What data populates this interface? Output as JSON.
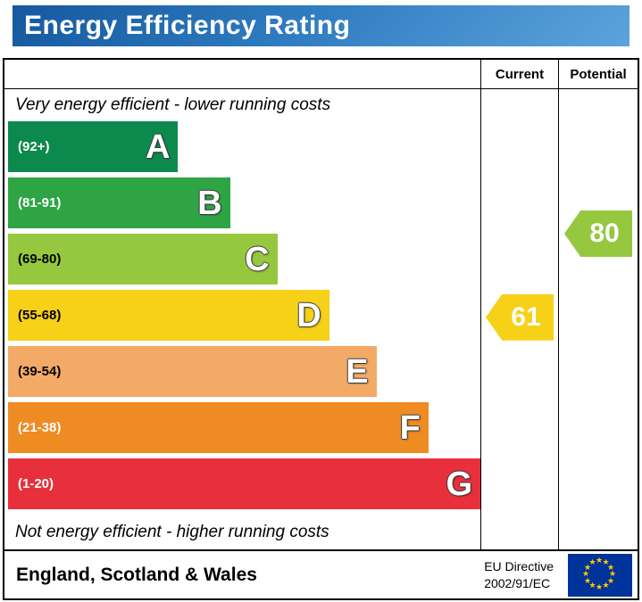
{
  "header": {
    "title": "Energy Efficiency Rating"
  },
  "table": {
    "current_label": "Current",
    "potential_label": "Potential"
  },
  "chart_data": {
    "type": "bar",
    "title": "Energy Efficiency Rating",
    "top_note": "Very energy efficient - lower running costs",
    "bottom_note": "Not energy efficient - higher running costs",
    "columns": [
      "Current",
      "Potential"
    ],
    "bands": [
      {
        "letter": "A",
        "range_label": "(92+)",
        "range": [
          92,
          100
        ],
        "color": "#0c8a4d",
        "text_color": "#ffffff",
        "width_pct": 36
      },
      {
        "letter": "B",
        "range_label": "(81-91)",
        "range": [
          81,
          91
        ],
        "color": "#2ea445",
        "text_color": "#ffffff",
        "width_pct": 47
      },
      {
        "letter": "C",
        "range_label": "(69-80)",
        "range": [
          69,
          80
        ],
        "color": "#95c83e",
        "text_color": "#000000",
        "width_pct": 57
      },
      {
        "letter": "D",
        "range_label": "(55-68)",
        "range": [
          55,
          68
        ],
        "color": "#f6d118",
        "text_color": "#000000",
        "width_pct": 68
      },
      {
        "letter": "E",
        "range_label": "(39-54)",
        "range": [
          39,
          54
        ],
        "color": "#f3aa66",
        "text_color": "#000000",
        "width_pct": 78
      },
      {
        "letter": "F",
        "range_label": "(21-38)",
        "range": [
          21,
          38
        ],
        "color": "#ee8b23",
        "text_color": "#ffffff",
        "width_pct": 89
      },
      {
        "letter": "G",
        "range_label": "(1-20)",
        "range": [
          1,
          20
        ],
        "color": "#e7303b",
        "text_color": "#ffffff",
        "width_pct": 100
      }
    ],
    "current": {
      "value": 61,
      "band_index": 3,
      "color": "#f6d118"
    },
    "potential": {
      "value": 80,
      "band_index": 2,
      "color": "#95c83e"
    }
  },
  "footer": {
    "region": "England, Scotland & Wales",
    "directive_line1": "EU Directive",
    "directive_line2": "2002/91/EC",
    "eu_flag": {
      "background": "#003399",
      "star_color": "#ffcc00",
      "star_count": 12
    }
  }
}
